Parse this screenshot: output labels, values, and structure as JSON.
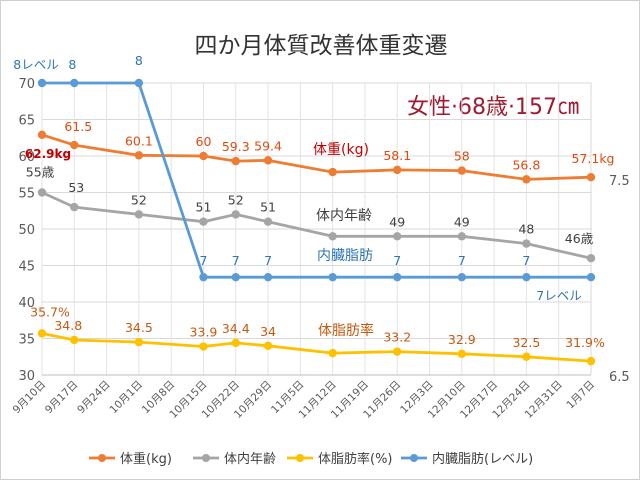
{
  "chart_data": {
    "type": "line",
    "title": "四か月体質改善体重変遷",
    "subtitle": "女性·68歳·157㎝",
    "categories": [
      "9月10日",
      "9月17日",
      "9月24日",
      "10月1日",
      "10月8日",
      "10月15日",
      "10月22日",
      "10月29日",
      "11月5日",
      "11月12日",
      "11月19日",
      "11月26日",
      "12月3日",
      "12月10日",
      "12月17日",
      "12月24日",
      "12月31日",
      "1月7日"
    ],
    "ylim": [
      30,
      70
    ],
    "yticks": [
      30,
      35,
      40,
      45,
      50,
      55,
      60,
      65,
      70
    ],
    "right_axis_labels": [
      "7.5",
      "6.5"
    ],
    "grid": true,
    "legend_position": "bottom",
    "series": [
      {
        "name": "体重(kg)",
        "color": "#ED7D31",
        "points": [
          [
            0,
            62.9
          ],
          [
            1,
            61.5
          ],
          [
            3,
            60.1
          ],
          [
            5,
            60
          ],
          [
            6,
            59.3
          ],
          [
            7,
            59.4
          ],
          [
            9,
            57.8
          ],
          [
            11,
            58.1
          ],
          [
            13,
            58
          ],
          [
            15,
            56.8
          ],
          [
            17,
            57.1
          ]
        ],
        "labels": [
          "62.9kg",
          "61.5",
          "60.1",
          "60",
          "59.3",
          "59.4",
          "",
          "58.1",
          "58",
          "56.8",
          "57.1kg"
        ]
      },
      {
        "name": "体内年齢",
        "color": "#A5A5A5",
        "points": [
          [
            0,
            55
          ],
          [
            1,
            53
          ],
          [
            3,
            52
          ],
          [
            5,
            51
          ],
          [
            6,
            52
          ],
          [
            7,
            51
          ],
          [
            9,
            49
          ],
          [
            11,
            49
          ],
          [
            13,
            49
          ],
          [
            15,
            48
          ],
          [
            17,
            46
          ]
        ],
        "labels": [
          "55歳",
          "53",
          "52",
          "51",
          "52",
          "51",
          "",
          "49",
          "49",
          "48",
          "46歳"
        ]
      },
      {
        "name": "体脂肪率(%)",
        "color": "#FFC000",
        "points": [
          [
            0,
            35.7
          ],
          [
            1,
            34.8
          ],
          [
            3,
            34.5
          ],
          [
            5,
            33.9
          ],
          [
            6,
            34.4
          ],
          [
            7,
            34
          ],
          [
            9,
            33
          ],
          [
            11,
            33.2
          ],
          [
            13,
            32.9
          ],
          [
            15,
            32.5
          ],
          [
            17,
            31.9
          ]
        ],
        "labels": [
          "35.7%",
          "34.8",
          "34.5",
          "33.9",
          "34.4",
          "34",
          "",
          "33.2",
          "32.9",
          "32.5",
          "31.9%"
        ]
      },
      {
        "name": "内臓脂肪(レベル)",
        "color": "#5B9BD5",
        "points": [
          [
            0,
            70
          ],
          [
            1,
            70
          ],
          [
            3,
            70
          ],
          [
            5,
            43.4
          ],
          [
            6,
            43.4
          ],
          [
            7,
            43.4
          ],
          [
            9,
            43.4
          ],
          [
            11,
            43.4
          ],
          [
            13,
            43.4
          ],
          [
            15,
            43.4
          ],
          [
            17,
            43.4
          ]
        ],
        "labels": [
          "8レベル",
          "8",
          "8",
          "7",
          "7",
          "7",
          "",
          "7",
          "7",
          "7",
          "7レベル"
        ]
      }
    ],
    "series_annotations": [
      "体重(kg)",
      "体内年齢",
      "内臓脂肪",
      "体脂肪率"
    ]
  }
}
